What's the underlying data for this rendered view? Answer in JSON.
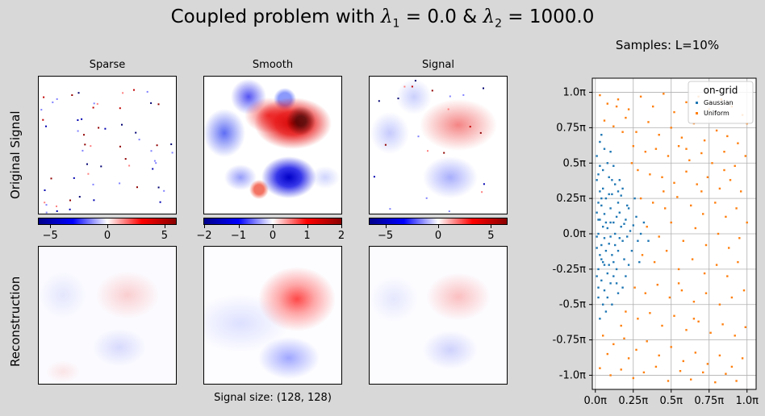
{
  "figure": {
    "title_prefix": "Coupled problem with ",
    "title_lambda1": "λ",
    "title_sub1": "1",
    "title_eq1": " = 0.0 & ",
    "title_lambda2": "λ",
    "title_sub2": "2",
    "title_eq2": " = 1000.0",
    "row_labels": [
      "Original Signal",
      "Reconstruction"
    ],
    "column_titles": [
      "Sparse",
      "Smooth",
      "Signal"
    ],
    "caption": "Signal size: (128, 128)"
  },
  "colorbars": [
    {
      "ticks": [
        "−5",
        "0",
        "5"
      ],
      "tick_values": [
        -5,
        0,
        5
      ],
      "range": [
        -6,
        6
      ]
    },
    {
      "ticks": [
        "−2",
        "−1",
        "0",
        "1",
        "2"
      ],
      "tick_values": [
        -2,
        -1,
        0,
        1,
        2
      ],
      "range": [
        -2,
        2
      ]
    },
    {
      "ticks": [
        "−5",
        "0",
        "5"
      ],
      "tick_values": [
        -5,
        0,
        5
      ],
      "range": [
        -6.5,
        6.5
      ]
    }
  ],
  "colors": {
    "cmap_low": "#00008b",
    "cmap_mid": "#ffffff",
    "cmap_high": "#8b0000",
    "gaussian": "#1f77b4",
    "uniform": "#ff7f0e"
  },
  "chart_data": {
    "type": "scatter",
    "title": "Samples: L=10%",
    "legend_title": "on-grid",
    "legend_position": "top-right",
    "grid": true,
    "xlim": [
      -0.02,
      1.06
    ],
    "ylim": [
      -1.1,
      1.1
    ],
    "x_ticks": [
      0,
      0.25,
      0.5,
      0.75,
      1.0
    ],
    "x_tick_labels": [
      "0.0π",
      "0.25π",
      "0.5π",
      "0.75π",
      "1.0π"
    ],
    "y_ticks": [
      -1.0,
      -0.75,
      -0.5,
      -0.25,
      0,
      0.25,
      0.5,
      0.75,
      1.0
    ],
    "y_tick_labels": [
      "-1.0π",
      "-0.75π",
      "-0.5π",
      "-0.25π",
      "0.0π",
      "0.25π",
      "0.5π",
      "0.75π",
      "1.0π"
    ],
    "series": [
      {
        "name": "Gaussian",
        "color": "#1f77b4",
        "points": [
          [
            0.01,
            0.55
          ],
          [
            0.02,
            0.42
          ],
          [
            0.01,
            0.38
          ],
          [
            0.03,
            0.3
          ],
          [
            0.02,
            0.22
          ],
          [
            0.04,
            0.2
          ],
          [
            0.01,
            0.15
          ],
          [
            0.03,
            0.1
          ],
          [
            0.05,
            0.05
          ],
          [
            0.02,
            0.0
          ],
          [
            0.06,
            -0.03
          ],
          [
            0.04,
            -0.08
          ],
          [
            0.01,
            -0.1
          ],
          [
            0.03,
            -0.15
          ],
          [
            0.07,
            -0.12
          ],
          [
            0.05,
            -0.2
          ],
          [
            0.02,
            -0.25
          ],
          [
            0.08,
            -0.28
          ],
          [
            0.04,
            -0.33
          ],
          [
            0.1,
            -0.35
          ],
          [
            0.06,
            -0.4
          ],
          [
            0.02,
            -0.45
          ],
          [
            0.12,
            -0.3
          ],
          [
            0.09,
            -0.22
          ],
          [
            0.11,
            -0.15
          ],
          [
            0.13,
            -0.08
          ],
          [
            0.1,
            -0.02
          ],
          [
            0.08,
            0.04
          ],
          [
            0.12,
            0.08
          ],
          [
            0.14,
            0.12
          ],
          [
            0.1,
            0.18
          ],
          [
            0.07,
            0.25
          ],
          [
            0.11,
            0.28
          ],
          [
            0.15,
            0.22
          ],
          [
            0.16,
            0.15
          ],
          [
            0.17,
            0.05
          ],
          [
            0.18,
            -0.05
          ],
          [
            0.15,
            -0.12
          ],
          [
            0.19,
            -0.18
          ],
          [
            0.14,
            -0.25
          ],
          [
            0.2,
            0.1
          ],
          [
            0.21,
            -0.02
          ],
          [
            0.22,
            0.18
          ],
          [
            0.23,
            0.02
          ],
          [
            0.18,
            0.32
          ],
          [
            0.13,
            0.35
          ],
          [
            0.09,
            0.4
          ],
          [
            0.16,
            0.38
          ],
          [
            0.05,
            0.45
          ],
          [
            0.08,
            0.5
          ],
          [
            0.12,
            0.48
          ],
          [
            0.06,
            0.6
          ],
          [
            0.03,
            0.65
          ],
          [
            0.1,
            0.58
          ],
          [
            0.04,
            0.7
          ],
          [
            0.07,
            -0.55
          ],
          [
            0.03,
            -0.6
          ],
          [
            0.11,
            -0.5
          ],
          [
            0.15,
            -0.42
          ],
          [
            0.18,
            -0.38
          ],
          [
            0.2,
            -0.3
          ],
          [
            0.24,
            -0.12
          ],
          [
            0.25,
            0.06
          ],
          [
            0.22,
            -0.22
          ],
          [
            0.26,
            0.25
          ],
          [
            0.28,
            -0.05
          ],
          [
            0.27,
            0.12
          ],
          [
            0.3,
            0.0
          ],
          [
            0.29,
            -0.2
          ],
          [
            0.05,
            0.32
          ],
          [
            0.02,
            0.1
          ],
          [
            0.01,
            -0.02
          ],
          [
            0.06,
            0.14
          ],
          [
            0.09,
            -0.07
          ],
          [
            0.04,
            -0.18
          ],
          [
            0.13,
            0.0
          ],
          [
            0.16,
            -0.03
          ],
          [
            0.19,
            0.07
          ],
          [
            0.07,
            0.08
          ],
          [
            0.03,
            0.48
          ],
          [
            0.14,
            -0.35
          ],
          [
            0.08,
            -0.45
          ],
          [
            0.01,
            -0.3
          ],
          [
            0.05,
            -0.5
          ],
          [
            0.09,
            0.28
          ],
          [
            0.17,
            0.27
          ],
          [
            0.12,
            -0.2
          ],
          [
            0.21,
            0.2
          ],
          [
            0.35,
            -0.05
          ],
          [
            0.32,
            0.08
          ],
          [
            0.1,
            0.08
          ],
          [
            0.02,
            -0.38
          ],
          [
            0.06,
            -0.22
          ],
          [
            0.15,
            0.3
          ],
          [
            0.04,
            0.25
          ],
          [
            0.11,
            0.38
          ]
        ]
      },
      {
        "name": "Uniform",
        "color": "#ff7f0e",
        "points": [
          [
            0.03,
            0.98
          ],
          [
            0.08,
            0.92
          ],
          [
            0.15,
            0.95
          ],
          [
            0.22,
            0.88
          ],
          [
            0.3,
            0.97
          ],
          [
            0.38,
            0.9
          ],
          [
            0.45,
            0.99
          ],
          [
            0.52,
            0.86
          ],
          [
            0.6,
            0.93
          ],
          [
            0.68,
            0.97
          ],
          [
            0.75,
            0.88
          ],
          [
            0.83,
            0.95
          ],
          [
            0.9,
            0.9
          ],
          [
            0.97,
            0.84
          ],
          [
            1.0,
            0.78
          ],
          [
            0.06,
            0.8
          ],
          [
            0.12,
            0.76
          ],
          [
            0.2,
            0.82
          ],
          [
            0.27,
            0.72
          ],
          [
            0.35,
            0.79
          ],
          [
            0.42,
            0.7
          ],
          [
            0.5,
            0.75
          ],
          [
            0.57,
            0.68
          ],
          [
            0.65,
            0.78
          ],
          [
            0.72,
            0.66
          ],
          [
            0.8,
            0.73
          ],
          [
            0.87,
            0.69
          ],
          [
            0.94,
            0.64
          ],
          [
            0.25,
            0.62
          ],
          [
            0.33,
            0.58
          ],
          [
            0.4,
            0.6
          ],
          [
            0.48,
            0.55
          ],
          [
            0.55,
            0.62
          ],
          [
            0.62,
            0.52
          ],
          [
            0.7,
            0.57
          ],
          [
            0.77,
            0.5
          ],
          [
            0.85,
            0.58
          ],
          [
            0.92,
            0.48
          ],
          [
            0.99,
            0.55
          ],
          [
            0.28,
            0.45
          ],
          [
            0.36,
            0.42
          ],
          [
            0.44,
            0.4
          ],
          [
            0.52,
            0.36
          ],
          [
            0.6,
            0.44
          ],
          [
            0.67,
            0.35
          ],
          [
            0.74,
            0.4
          ],
          [
            0.82,
            0.32
          ],
          [
            0.89,
            0.38
          ],
          [
            0.96,
            0.3
          ],
          [
            0.3,
            0.25
          ],
          [
            0.38,
            0.22
          ],
          [
            0.46,
            0.18
          ],
          [
            0.54,
            0.26
          ],
          [
            0.63,
            0.2
          ],
          [
            0.71,
            0.14
          ],
          [
            0.79,
            0.22
          ],
          [
            0.86,
            0.12
          ],
          [
            0.93,
            0.18
          ],
          [
            1.0,
            0.08
          ],
          [
            0.34,
            0.05
          ],
          [
            0.42,
            -0.02
          ],
          [
            0.5,
            0.08
          ],
          [
            0.58,
            -0.05
          ],
          [
            0.66,
            0.04
          ],
          [
            0.73,
            -0.08
          ],
          [
            0.81,
            0.0
          ],
          [
            0.88,
            -0.1
          ],
          [
            0.95,
            -0.03
          ],
          [
            0.31,
            -0.15
          ],
          [
            0.39,
            -0.2
          ],
          [
            0.47,
            -0.12
          ],
          [
            0.55,
            -0.25
          ],
          [
            0.64,
            -0.18
          ],
          [
            0.72,
            -0.28
          ],
          [
            0.8,
            -0.22
          ],
          [
            0.87,
            -0.3
          ],
          [
            0.94,
            -0.2
          ],
          [
            0.26,
            -0.38
          ],
          [
            0.33,
            -0.42
          ],
          [
            0.41,
            -0.36
          ],
          [
            0.49,
            -0.45
          ],
          [
            0.57,
            -0.4
          ],
          [
            0.65,
            -0.48
          ],
          [
            0.73,
            -0.42
          ],
          [
            0.82,
            -0.5
          ],
          [
            0.9,
            -0.45
          ],
          [
            0.98,
            -0.4
          ],
          [
            0.2,
            -0.55
          ],
          [
            0.28,
            -0.6
          ],
          [
            0.36,
            -0.56
          ],
          [
            0.44,
            -0.65
          ],
          [
            0.52,
            -0.58
          ],
          [
            0.6,
            -0.68
          ],
          [
            0.68,
            -0.62
          ],
          [
            0.76,
            -0.7
          ],
          [
            0.84,
            -0.64
          ],
          [
            0.92,
            -0.72
          ],
          [
            0.99,
            -0.66
          ],
          [
            0.05,
            -0.72
          ],
          [
            0.12,
            -0.78
          ],
          [
            0.19,
            -0.74
          ],
          [
            0.27,
            -0.82
          ],
          [
            0.34,
            -0.76
          ],
          [
            0.42,
            -0.86
          ],
          [
            0.5,
            -0.8
          ],
          [
            0.58,
            -0.9
          ],
          [
            0.66,
            -0.84
          ],
          [
            0.74,
            -0.92
          ],
          [
            0.82,
            -0.86
          ],
          [
            0.9,
            -0.94
          ],
          [
            0.97,
            -0.88
          ],
          [
            0.03,
            -0.95
          ],
          [
            0.1,
            -1.0
          ],
          [
            0.17,
            -0.96
          ],
          [
            0.25,
            -1.02
          ],
          [
            0.32,
            -0.98
          ],
          [
            0.4,
            -0.94
          ],
          [
            0.48,
            -1.04
          ],
          [
            0.56,
            -0.97
          ],
          [
            0.63,
            -1.03
          ],
          [
            0.71,
            -0.98
          ],
          [
            0.79,
            -1.05
          ],
          [
            0.86,
            -0.99
          ],
          [
            0.93,
            -1.04
          ],
          [
            0.14,
            0.9
          ],
          [
            0.18,
            0.72
          ],
          [
            0.24,
            0.5
          ],
          [
            0.17,
            -0.65
          ],
          [
            0.22,
            -0.88
          ],
          [
            0.08,
            -0.85
          ],
          [
            0.6,
            0.6
          ],
          [
            0.7,
            0.3
          ],
          [
            0.45,
            0.3
          ],
          [
            0.85,
            0.45
          ],
          [
            0.55,
            -0.35
          ],
          [
            0.65,
            -0.6
          ]
        ]
      }
    ]
  }
}
